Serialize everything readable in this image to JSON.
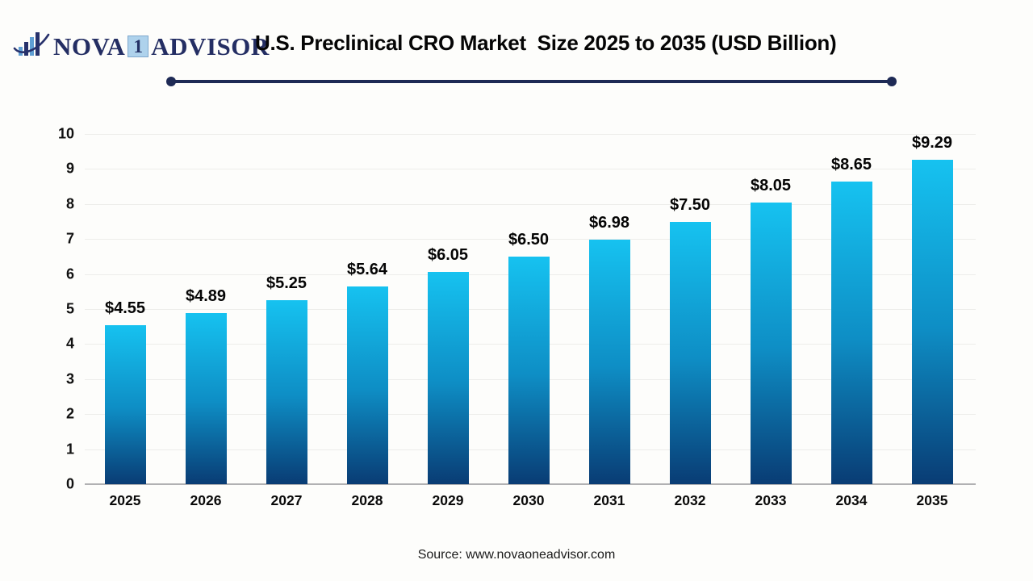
{
  "logo": {
    "word1": "NOVA",
    "badge": "1",
    "word2": "ADVISOR",
    "icon": "bar-chart-swoosh-icon",
    "navy": "#242e63",
    "light_blue": "#5f9fd4"
  },
  "chart_data": {
    "type": "bar",
    "title": "U.S. Preclinical CRO Market  Size 2025 to 2035 (USD Billion)",
    "categories": [
      "2025",
      "2026",
      "2027",
      "2028",
      "2029",
      "2030",
      "2031",
      "2032",
      "2033",
      "2034",
      "2035"
    ],
    "values": [
      4.55,
      4.89,
      5.25,
      5.64,
      6.05,
      6.5,
      6.98,
      7.5,
      8.05,
      8.65,
      9.29
    ],
    "labels": [
      "$4.55",
      "$4.89",
      "$5.25",
      "$5.64",
      "$6.05",
      "$6.50",
      "$6.98",
      "$7.50",
      "$8.05",
      "$8.65",
      "$9.29"
    ],
    "xlabel": "",
    "ylabel": "",
    "ylim": [
      0,
      10
    ],
    "yticks": [
      0,
      1,
      2,
      3,
      4,
      5,
      6,
      7,
      8,
      9,
      10
    ],
    "grid": true,
    "legend": false,
    "bar_gradient_top": "#16c2f0",
    "bar_gradient_bottom": "#093c74"
  },
  "footer": {
    "source": "Source: www.novaoneadvisor.com"
  }
}
